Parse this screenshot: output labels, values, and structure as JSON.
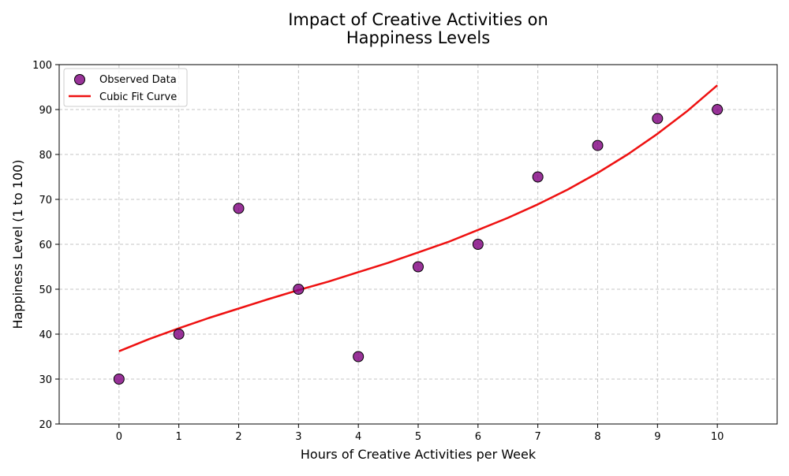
{
  "chart_data": {
    "type": "scatter",
    "title_lines": [
      "Impact of Creative Activities on",
      "Happiness Levels"
    ],
    "xlabel": "Hours of Creative Activities per Week",
    "ylabel": "Happiness Level (1 to 100)",
    "xlim": [
      -1,
      11
    ],
    "ylim": [
      20,
      100
    ],
    "xticks": [
      0,
      1,
      2,
      3,
      4,
      5,
      6,
      7,
      8,
      9,
      10
    ],
    "yticks": [
      20,
      30,
      40,
      50,
      60,
      70,
      80,
      90,
      100
    ],
    "grid": true,
    "grid_style": "dashed",
    "legend_position": "top-left",
    "series": [
      {
        "name": "Observed Data",
        "kind": "scatter",
        "color": "#800080",
        "edge_color": "#000000",
        "x": [
          0,
          1,
          2,
          3,
          4,
          5,
          6,
          7,
          8,
          9,
          10
        ],
        "y": [
          30,
          40,
          68,
          50,
          35,
          55,
          60,
          75,
          82,
          88,
          90
        ]
      },
      {
        "name": "Cubic Fit Curve",
        "kind": "line",
        "color": "#ee1111",
        "x": [
          0,
          0.5,
          1,
          1.5,
          2,
          2.5,
          3,
          3.5,
          4,
          4.5,
          5,
          5.5,
          6,
          6.5,
          7,
          7.5,
          8,
          8.5,
          9,
          9.5,
          10
        ],
        "y": [
          36.2,
          38.9,
          41.3,
          43.6,
          45.7,
          47.8,
          49.8,
          51.7,
          53.8,
          55.9,
          58.2,
          60.5,
          63.2,
          65.9,
          68.9,
          72.2,
          75.9,
          80.0,
          84.6,
          89.7,
          95.4
        ]
      }
    ]
  }
}
